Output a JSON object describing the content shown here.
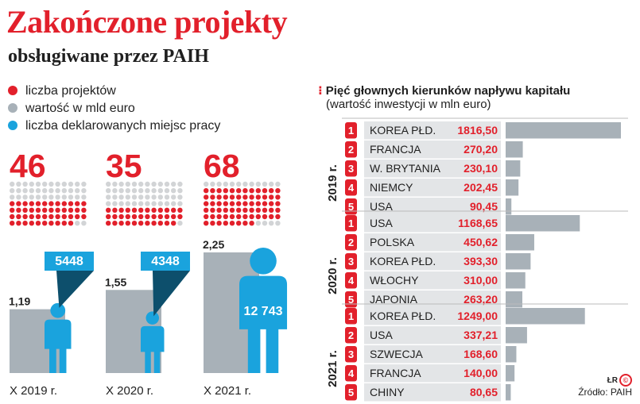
{
  "title": "Zakończone projekty",
  "subtitle": "obsługiwane przez PAIH",
  "legend": [
    {
      "label": "liczba projektów",
      "color": "#e2202b"
    },
    {
      "label": "wartość w mld euro",
      "color": "#a8b1b8"
    },
    {
      "label": "liczba deklarowanych miejsc pracy",
      "color": "#1aa3dd"
    }
  ],
  "colors": {
    "red": "#e2202b",
    "gray": "#a8b1b8",
    "lightgray": "#d2d4d6",
    "blue": "#1aa3dd",
    "darkblue": "#0d4f6c"
  },
  "chart_data": [
    {
      "type": "bar",
      "categories": [
        "X 2019 r.",
        "X 2020 r.",
        "X 2021 r."
      ],
      "series": [
        {
          "name": "liczba projektów",
          "values": [
            46,
            35,
            68
          ]
        },
        {
          "name": "wartość w mld euro",
          "values": [
            1.19,
            1.55,
            2.25
          ]
        },
        {
          "name": "liczba deklarowanych miejsc pracy",
          "values": [
            5448,
            4348,
            12743
          ]
        }
      ],
      "projects_labels": [
        "46",
        "35",
        "68"
      ],
      "value_labels": [
        "1,19",
        "1,55",
        "2,25"
      ],
      "jobs_labels": [
        "5448",
        "4348",
        "12 743"
      ]
    },
    {
      "type": "bar",
      "title": "Pięć głownych kierunków napływu kapitału",
      "subtitle": "(wartość inwestycji w mln euro)",
      "groups": [
        {
          "year": "2019 r.",
          "items": [
            {
              "rank": "1",
              "country": "KOREA PŁD.",
              "value": 1816.5,
              "label": "1816,50"
            },
            {
              "rank": "2",
              "country": "FRANCJA",
              "value": 270.2,
              "label": "270,20"
            },
            {
              "rank": "3",
              "country": "W. BRYTANIA",
              "value": 230.1,
              "label": "230,10"
            },
            {
              "rank": "4",
              "country": "NIEMCY",
              "value": 202.45,
              "label": "202,45"
            },
            {
              "rank": "5",
              "country": "USA",
              "value": 90.45,
              "label": "90,45"
            }
          ]
        },
        {
          "year": "2020 r.",
          "items": [
            {
              "rank": "1",
              "country": "USA",
              "value": 1168.65,
              "label": "1168,65"
            },
            {
              "rank": "2",
              "country": "POLSKA",
              "value": 450.62,
              "label": "450,62"
            },
            {
              "rank": "3",
              "country": "KOREA PŁD.",
              "value": 393.3,
              "label": "393,30"
            },
            {
              "rank": "4",
              "country": "WŁOCHY",
              "value": 310.0,
              "label": "310,00"
            },
            {
              "rank": "5",
              "country": "JAPONIA",
              "value": 263.2,
              "label": "263,20"
            }
          ]
        },
        {
          "year": "2021 r.",
          "items": [
            {
              "rank": "1",
              "country": "KOREA PŁD.",
              "value": 1249.0,
              "label": "1249,00"
            },
            {
              "rank": "2",
              "country": "USA",
              "value": 337.21,
              "label": "337,21"
            },
            {
              "rank": "3",
              "country": "SZWECJA",
              "value": 168.6,
              "label": "168,60"
            },
            {
              "rank": "4",
              "country": "FRANCJA",
              "value": 140.0,
              "label": "140,00"
            },
            {
              "rank": "5",
              "country": "CHINY",
              "value": 80.65,
              "label": "80,65"
            }
          ]
        }
      ]
    }
  ],
  "logo": {
    "text": "ŁR",
    "mark": "CP"
  },
  "source": "Źródło: PAIH"
}
